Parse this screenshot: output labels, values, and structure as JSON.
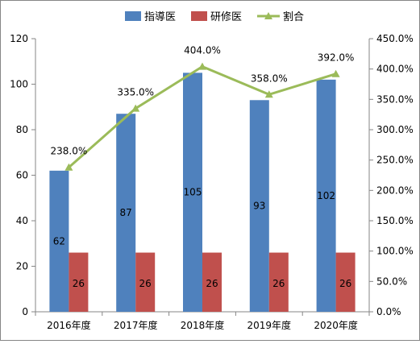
{
  "chart_data": {
    "type": "bar",
    "categories": [
      "2016年度",
      "2017年度",
      "2018年度",
      "2019年度",
      "2020年度"
    ],
    "series": [
      {
        "name": "指導医",
        "kind": "bar",
        "axis": "left",
        "color": "#4F81BD",
        "values": [
          62,
          87,
          105,
          93,
          102
        ],
        "labels": [
          "62",
          "87",
          "105",
          "93",
          "102"
        ]
      },
      {
        "name": "研修医",
        "kind": "bar",
        "axis": "left",
        "color": "#C0504D",
        "values": [
          26,
          26,
          26,
          26,
          26
        ],
        "labels": [
          "26",
          "26",
          "26",
          "26",
          "26"
        ]
      },
      {
        "name": "割合",
        "kind": "line",
        "axis": "right",
        "color": "#9BBB59",
        "marker": "triangle",
        "values": [
          238.0,
          335.0,
          404.0,
          358.0,
          392.0
        ],
        "labels": [
          "238.0%",
          "335.0%",
          "404.0%",
          "358.0%",
          "392.0%"
        ]
      }
    ],
    "y_left": {
      "min": 0,
      "max": 120,
      "ticks": [
        "0",
        "20",
        "40",
        "60",
        "80",
        "100",
        "120"
      ]
    },
    "y_right": {
      "min": 0,
      "max": 450,
      "ticks": [
        "0.0%",
        "50.0%",
        "100.0%",
        "150.0%",
        "200.0%",
        "250.0%",
        "300.0%",
        "350.0%",
        "400.0%",
        "450.0%"
      ]
    },
    "legend_position": "top",
    "grid": false
  }
}
